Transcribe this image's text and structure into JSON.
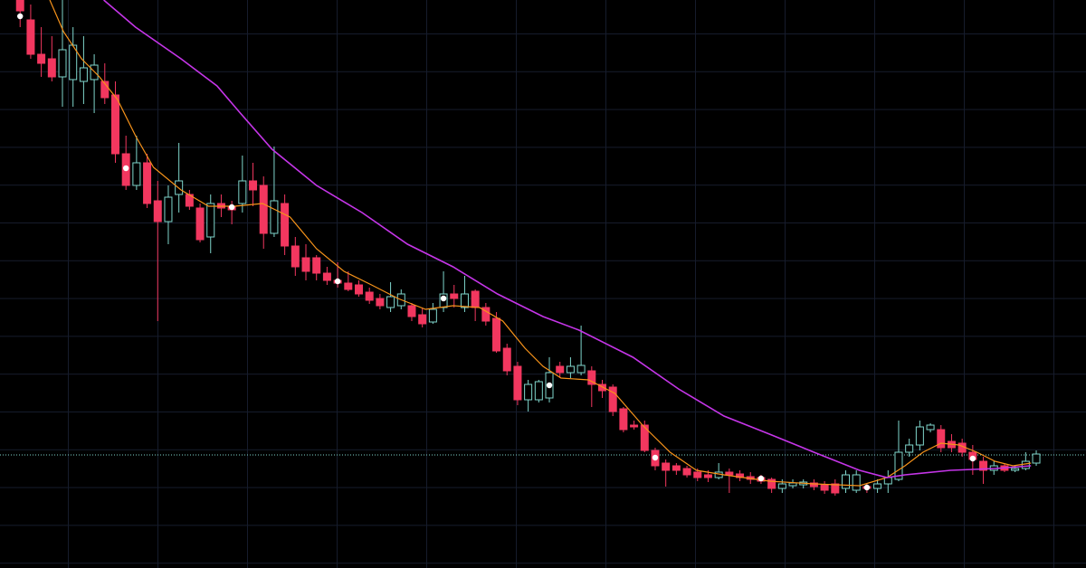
{
  "chart_data": {
    "type": "candlestick",
    "xlim": [
      -1.9,
      100.7
    ],
    "ylim": [
      0,
      628
    ],
    "grid": true,
    "up_color": "#7fd6cc",
    "down_color": "#f2375f",
    "x": [
      0,
      1,
      2,
      3,
      4,
      5,
      6,
      7,
      8,
      9,
      10,
      11,
      12,
      13,
      14,
      15,
      16,
      17,
      18,
      19,
      20,
      21,
      22,
      23,
      24,
      25,
      26,
      27,
      28,
      29,
      30,
      31,
      32,
      33,
      34,
      35,
      36,
      37,
      38,
      39,
      40,
      41,
      42,
      43,
      44,
      45,
      46,
      47,
      48,
      49,
      50,
      51,
      52,
      53,
      54,
      55,
      56,
      57,
      58,
      59,
      60,
      61,
      62,
      63,
      64,
      65,
      66,
      67,
      68,
      69,
      70,
      71,
      72,
      73,
      74,
      75,
      76,
      77,
      78,
      79,
      80,
      81,
      82,
      83,
      84,
      85,
      86,
      87,
      88,
      89,
      90,
      91,
      92,
      93,
      94,
      95,
      96
    ],
    "open": [
      628,
      606,
      568,
      563,
      543,
      540,
      538,
      540,
      538,
      523,
      458,
      423,
      448,
      406,
      383,
      413,
      413,
      398,
      366,
      403,
      400,
      403,
      428,
      423,
      370,
      403,
      356,
      343,
      343,
      326,
      318,
      315,
      313,
      305,
      298,
      288,
      290,
      290,
      280,
      272,
      288,
      303,
      288,
      306,
      288,
      276,
      243,
      223,
      186,
      186,
      188,
      223,
      216,
      216,
      218,
      203,
      200,
      176,
      158,
      158,
      130,
      116,
      113,
      110,
      106,
      103,
      100,
      106,
      104,
      101,
      100,
      98,
      88,
      91,
      92,
      94,
      92,
      93,
      88,
      86,
      90,
      88,
      93,
      98,
      128,
      136,
      153,
      153,
      140,
      138,
      128,
      118,
      108,
      113,
      108,
      110,
      116
    ],
    "high": [
      633,
      623,
      598,
      588,
      628,
      598,
      588,
      568,
      558,
      538,
      478,
      478,
      458,
      428,
      423,
      470,
      418,
      403,
      413,
      413,
      406,
      456,
      448,
      433,
      466,
      413,
      366,
      358,
      346,
      333,
      338,
      328,
      318,
      310,
      303,
      316,
      308,
      293,
      288,
      293,
      328,
      313,
      323,
      308,
      293,
      283,
      248,
      228,
      208,
      208,
      233,
      228,
      233,
      268,
      223,
      208,
      203,
      178,
      163,
      163,
      133,
      120,
      116,
      113,
      110,
      108,
      116,
      110,
      108,
      106,
      103,
      100,
      98,
      98,
      98,
      98,
      96,
      98,
      108,
      108,
      93,
      98,
      108,
      163,
      143,
      163,
      160,
      158,
      148,
      143,
      136,
      123,
      118,
      116,
      113,
      128,
      130
    ],
    "low": [
      598,
      563,
      543,
      538,
      510,
      510,
      513,
      503,
      513,
      448,
      418,
      418,
      398,
      273,
      358,
      393,
      396,
      360,
      348,
      388,
      380,
      393,
      400,
      353,
      366,
      346,
      323,
      318,
      318,
      313,
      310,
      306,
      300,
      292,
      286,
      283,
      286,
      273,
      266,
      270,
      283,
      288,
      283,
      273,
      268,
      238,
      213,
      180,
      173,
      183,
      183,
      210,
      210,
      213,
      178,
      188,
      168,
      150,
      153,
      128,
      108,
      90,
      103,
      100,
      96,
      95,
      98,
      83,
      96,
      93,
      93,
      83,
      83,
      88,
      88,
      86,
      82,
      80,
      83,
      83,
      83,
      83,
      83,
      96,
      123,
      130,
      150,
      128,
      128,
      123,
      103,
      93,
      103,
      106,
      106,
      108,
      113
    ],
    "close": [
      616,
      568,
      558,
      543,
      573,
      578,
      553,
      556,
      520,
      458,
      423,
      448,
      403,
      383,
      410,
      428,
      400,
      363,
      403,
      398,
      396,
      428,
      418,
      370,
      406,
      356,
      333,
      328,
      326,
      318,
      315,
      308,
      303,
      296,
      290,
      300,
      303,
      278,
      270,
      286,
      303,
      298,
      303,
      288,
      273,
      240,
      218,
      186,
      203,
      206,
      216,
      216,
      223,
      224,
      203,
      196,
      173,
      153,
      156,
      130,
      113,
      108,
      108,
      103,
      100,
      100,
      106,
      103,
      100,
      98,
      96,
      88,
      93,
      94,
      95,
      90,
      86,
      83,
      103,
      103,
      88,
      93,
      100,
      128,
      136,
      156,
      158,
      133,
      133,
      128,
      120,
      108,
      113,
      108,
      110,
      118,
      126
    ],
    "series": [
      {
        "color": "#f7931a",
        "x": [
          2.8,
          4.1,
          5.8,
          7.5,
          9.2,
          10.9,
          12.6,
          15.2,
          17.8,
          20.3,
          22.9,
          25.5,
          28.0,
          30.6,
          33.2,
          35.7,
          38.3,
          40.9,
          43.4,
          45.6,
          47.7,
          49.4,
          51.1,
          53.7,
          56.2,
          58.8,
          61.4,
          63.9,
          66.5,
          70.8,
          75.0,
          79.3,
          81.9,
          83.6,
          85.3,
          87.0,
          88.7,
          90.4,
          92.1,
          93.8,
          95.5
        ],
        "values": [
          628,
          593,
          563,
          543,
          518,
          478,
          443,
          418,
          400,
          400,
          403,
          388,
          353,
          328,
          313,
          298,
          286,
          290,
          288,
          273,
          243,
          223,
          210,
          208,
          193,
          158,
          128,
          108,
          103,
          96,
          93,
          91,
          100,
          113,
          128,
          138,
          136,
          128,
          118,
          113,
          116
        ]
      },
      {
        "color": "#c535e8",
        "x": [
          7.9,
          10.9,
          15.2,
          18.6,
          20.8,
          23.8,
          28.0,
          32.3,
          36.6,
          40.9,
          45.1,
          49.4,
          52.8,
          57.9,
          62.2,
          66.5,
          70.8,
          75.0,
          79.3,
          81.9,
          83.6,
          87.9,
          92.1,
          95.5
        ],
        "values": [
          628,
          598,
          563,
          533,
          503,
          463,
          423,
          393,
          358,
          333,
          303,
          278,
          263,
          233,
          198,
          168,
          148,
          128,
          108,
          100,
          103,
          108,
          110,
          113
        ]
      }
    ],
    "signals": {
      "color": "#ffffff",
      "x": [
        0,
        10,
        20,
        30,
        40,
        50,
        60,
        70,
        80,
        90
      ],
      "values": [
        610,
        442,
        399,
        317,
        298,
        202,
        122,
        99,
        89,
        121
      ]
    },
    "price_line": 125,
    "price_line_color": "#7fd6cc"
  }
}
